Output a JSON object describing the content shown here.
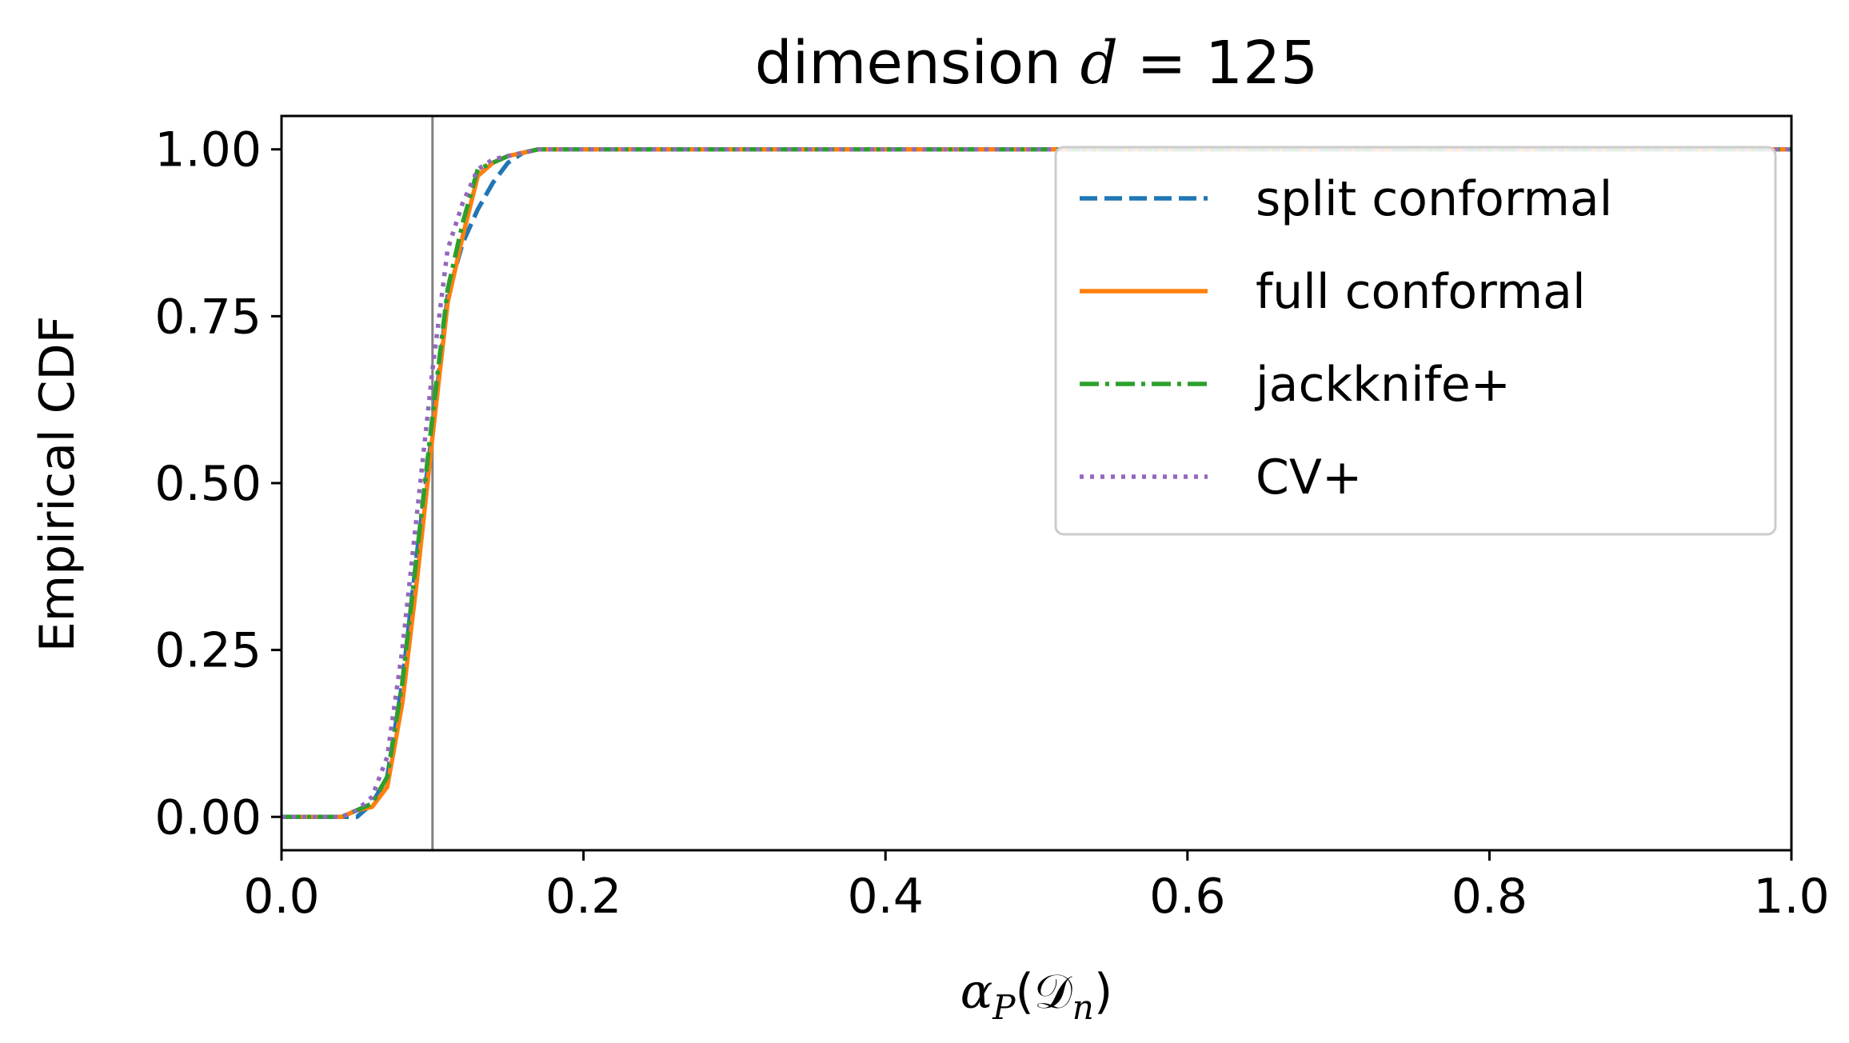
{
  "chart_data": {
    "type": "line",
    "title_prefix": "dimension ",
    "title_var": "d",
    "title_suffix": " = 125",
    "xlabel_main": "α",
    "xlabel_sub": "P",
    "xlabel_arg": "(𝒟",
    "xlabel_arg_sub": "n",
    "xlabel_close": ")",
    "ylabel": "Empirical CDF",
    "xlim": [
      0.0,
      1.0
    ],
    "ylim": [
      -0.05,
      1.05
    ],
    "xticks": [
      0.0,
      0.2,
      0.4,
      0.6,
      0.8,
      1.0
    ],
    "xtick_labels": [
      "0.0",
      "0.2",
      "0.4",
      "0.6",
      "0.8",
      "1.0"
    ],
    "yticks": [
      0.0,
      0.25,
      0.5,
      0.75,
      1.0
    ],
    "ytick_labels": [
      "0.00",
      "0.25",
      "0.50",
      "0.75",
      "1.00"
    ],
    "grid": false,
    "legend_position": "top-right",
    "reference_line": {
      "x": 0.1,
      "color": "#808080"
    },
    "series": [
      {
        "name": "split conformal",
        "color": "#1f77b4",
        "dash": "dashed",
        "x": [
          0.0,
          0.04,
          0.05,
          0.06,
          0.07,
          0.08,
          0.09,
          0.1,
          0.11,
          0.12,
          0.13,
          0.14,
          0.15,
          0.16,
          0.17,
          0.2,
          1.0
        ],
        "y": [
          0.0,
          0.0,
          0.0,
          0.02,
          0.06,
          0.2,
          0.4,
          0.58,
          0.78,
          0.86,
          0.91,
          0.95,
          0.98,
          0.995,
          1.0,
          1.0,
          1.0
        ]
      },
      {
        "name": "full conformal",
        "color": "#ff7f0e",
        "dash": "solid",
        "x": [
          0.0,
          0.04,
          0.05,
          0.06,
          0.07,
          0.08,
          0.09,
          0.1,
          0.11,
          0.12,
          0.13,
          0.14,
          0.15,
          0.16,
          0.17,
          0.2,
          1.0
        ],
        "y": [
          0.0,
          0.0,
          0.01,
          0.015,
          0.045,
          0.17,
          0.36,
          0.57,
          0.77,
          0.87,
          0.96,
          0.98,
          0.99,
          0.995,
          1.0,
          1.0,
          1.0
        ]
      },
      {
        "name": "jackknife+",
        "color": "#2ca02c",
        "dash": "dashdot",
        "x": [
          0.0,
          0.04,
          0.05,
          0.06,
          0.07,
          0.08,
          0.09,
          0.1,
          0.11,
          0.12,
          0.13,
          0.14,
          0.15,
          0.16,
          0.17,
          0.2,
          1.0
        ],
        "y": [
          0.0,
          0.0,
          0.01,
          0.02,
          0.06,
          0.2,
          0.4,
          0.6,
          0.79,
          0.89,
          0.97,
          0.98,
          0.99,
          0.995,
          1.0,
          1.0,
          1.0
        ]
      },
      {
        "name": "CV+",
        "color": "#9467bd",
        "dash": "dotted",
        "x": [
          0.0,
          0.04,
          0.05,
          0.06,
          0.07,
          0.08,
          0.09,
          0.1,
          0.11,
          0.12,
          0.13,
          0.14,
          0.15,
          0.16,
          0.17,
          0.2,
          1.0
        ],
        "y": [
          0.0,
          0.0,
          0.01,
          0.03,
          0.09,
          0.25,
          0.46,
          0.67,
          0.85,
          0.92,
          0.97,
          0.985,
          0.99,
          0.995,
          1.0,
          1.0,
          1.0
        ]
      }
    ]
  }
}
